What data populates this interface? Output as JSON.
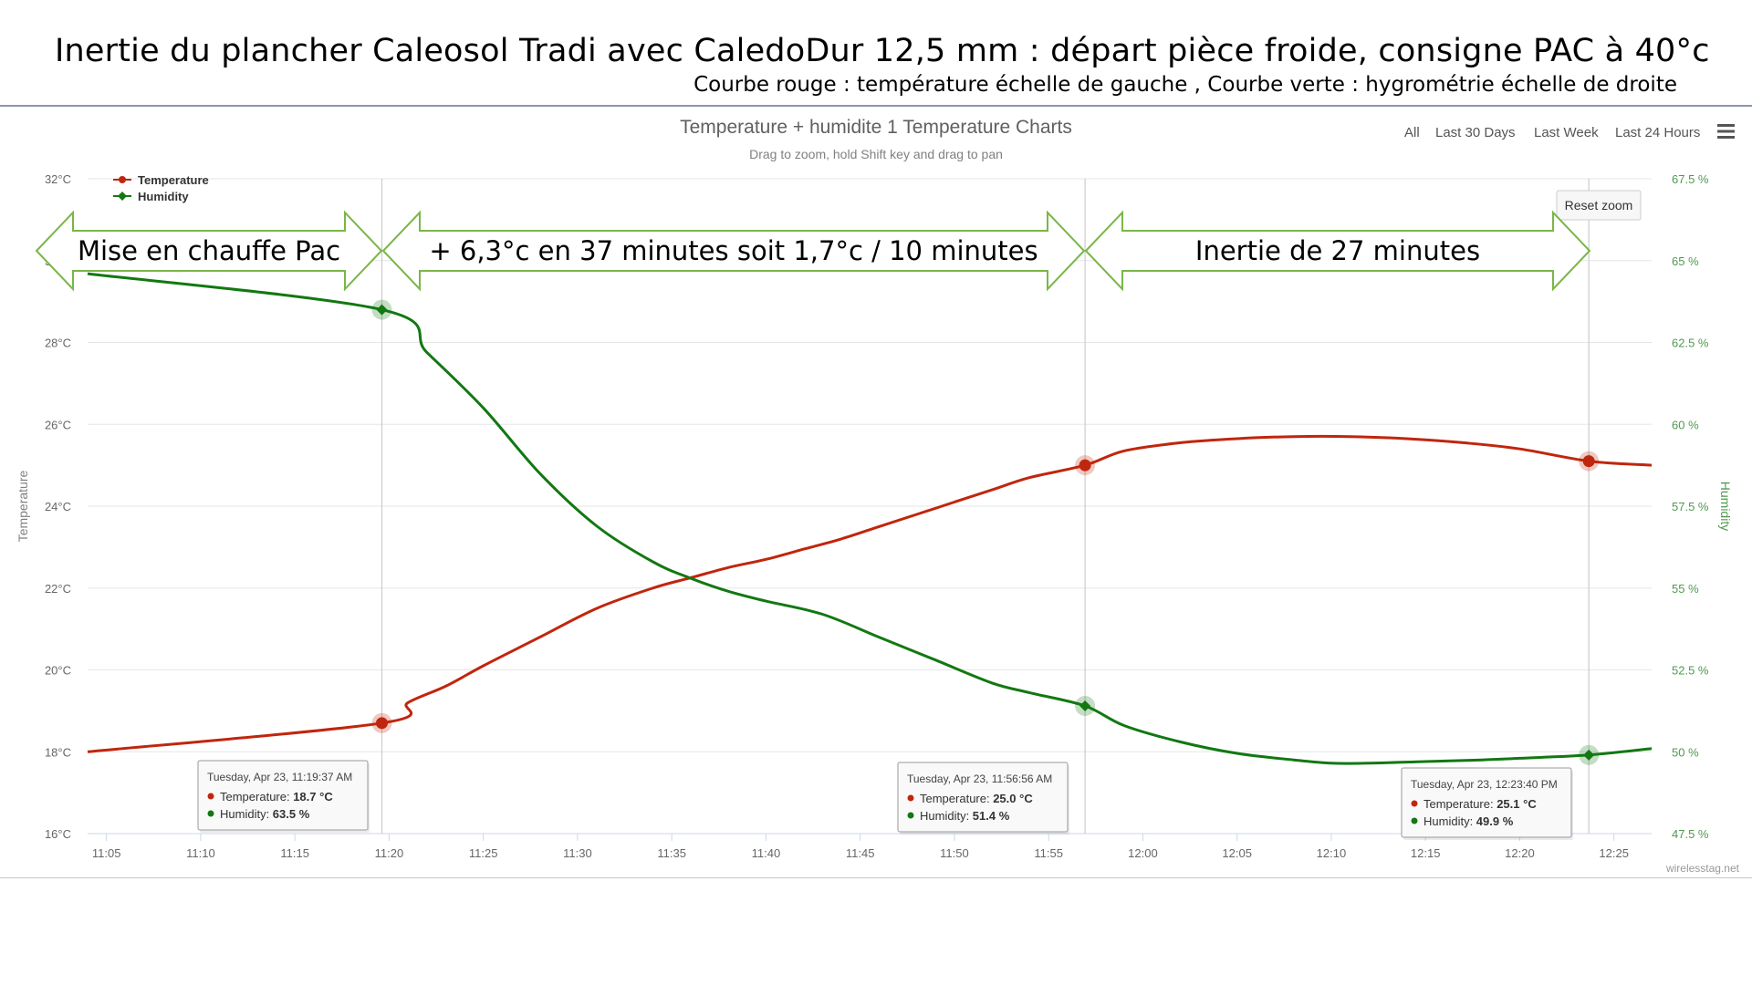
{
  "slide": {
    "title": "Inertie du plancher Caleosol Tradi avec CaledoDur 12,5 mm : départ pièce froide, consigne PAC à 40°c",
    "subtitle": "Courbe rouge : température échelle de gauche , Courbe verte : hygrométrie échelle de droite"
  },
  "toolbar": {
    "ranges": [
      "All",
      "Last 30 Days",
      "Last Week",
      "Last 24 Hours"
    ],
    "reset_zoom": "Reset zoom",
    "menu_icon": "hamburger-menu-icon"
  },
  "credit": "wirelesstag.net",
  "annotations": [
    "Mise en chauffe Pac",
    "+ 6,3°c en 37 minutes soit 1,7°c / 10 minutes",
    "Inertie de 27 minutes"
  ],
  "tooltips": [
    {
      "date": "Tuesday, Apr 23, 11:19:37 AM",
      "temp_label": "Temperature: ",
      "temp_value": "18.7 °C",
      "hum_label": "Humidity: ",
      "hum_value": "63.5 %"
    },
    {
      "date": "Tuesday, Apr 23, 11:56:56 AM",
      "temp_label": "Temperature: ",
      "temp_value": "25.0 °C",
      "hum_label": "Humidity: ",
      "hum_value": "51.4 %"
    },
    {
      "date": "Tuesday, Apr 23, 12:23:40 PM",
      "temp_label": "Temperature: ",
      "temp_value": "25.1 °C",
      "hum_label": "Humidity: ",
      "hum_value": "49.9 %"
    }
  ],
  "chart_data": {
    "type": "line",
    "title": "Temperature + humidite 1 Temperature Charts",
    "subtitle": "Drag to zoom, hold Shift key and drag to pan",
    "xlabel": "",
    "ylabel": "Temperature",
    "y2label": "Humidity",
    "xlim": [
      "11:04",
      "12:27"
    ],
    "ylim": [
      16,
      32
    ],
    "y2lim": [
      47.5,
      67.5
    ],
    "x_ticks": [
      "11:05",
      "11:10",
      "11:15",
      "11:20",
      "11:25",
      "11:30",
      "11:35",
      "11:40",
      "11:45",
      "11:50",
      "11:55",
      "12:00",
      "12:05",
      "12:10",
      "12:15",
      "12:20",
      "12:25"
    ],
    "y_ticks": [
      "16°C",
      "18°C",
      "20°C",
      "22°C",
      "24°C",
      "26°C",
      "28°C",
      "30°C",
      "32°C"
    ],
    "y2_ticks": [
      "47.5 %",
      "50 %",
      "52.5 %",
      "55 %",
      "57.5 %",
      "60 %",
      "62.5 %",
      "65 %",
      "67.5 %"
    ],
    "grid": true,
    "legend_position": "top-left",
    "series": [
      {
        "name": "Temperature",
        "axis": "left",
        "color": "#c0260d",
        "x": [
          "11:04",
          "11:19:37",
          "11:21",
          "11:23",
          "11:25",
          "11:28",
          "11:31",
          "11:34",
          "11:36",
          "11:38",
          "11:40",
          "11:42",
          "11:44",
          "11:46",
          "11:48",
          "11:50",
          "11:52",
          "11:54",
          "11:56:56",
          "11:59",
          "12:02",
          "12:05",
          "12:08",
          "12:11",
          "12:14",
          "12:17",
          "12:20",
          "12:23:40",
          "12:27"
        ],
        "y": [
          18.0,
          18.7,
          19.2,
          19.6,
          20.1,
          20.8,
          21.5,
          22.0,
          22.25,
          22.5,
          22.7,
          22.95,
          23.2,
          23.5,
          23.8,
          24.1,
          24.4,
          24.7,
          25.0,
          25.35,
          25.55,
          25.65,
          25.7,
          25.7,
          25.65,
          25.55,
          25.4,
          25.1,
          25.0
        ]
      },
      {
        "name": "Humidity",
        "axis": "right",
        "color": "#127812",
        "x": [
          "11:04",
          "11:19:37",
          "11:22",
          "11:25",
          "11:28",
          "11:31",
          "11:34",
          "11:36",
          "11:38",
          "11:40",
          "11:43",
          "11:46",
          "11:49",
          "11:52",
          "11:54",
          "11:56:56",
          "11:59",
          "12:02",
          "12:05",
          "12:08",
          "12:10",
          "12:12",
          "12:15",
          "12:18",
          "12:20",
          "12:23:40",
          "12:27"
        ],
        "y": [
          64.6,
          63.5,
          62.2,
          60.5,
          58.5,
          56.9,
          55.8,
          55.3,
          54.9,
          54.6,
          54.2,
          53.5,
          52.8,
          52.1,
          51.8,
          51.4,
          50.8,
          50.3,
          49.95,
          49.75,
          49.65,
          49.65,
          49.7,
          49.75,
          49.8,
          49.9,
          50.1
        ]
      }
    ]
  }
}
